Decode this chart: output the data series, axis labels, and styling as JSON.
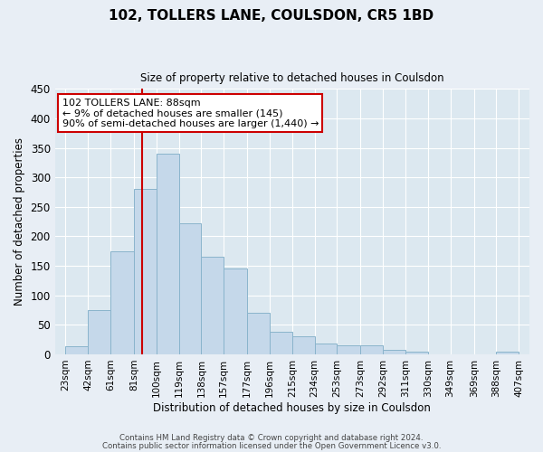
{
  "title": "102, TOLLERS LANE, COULSDON, CR5 1BD",
  "subtitle": "Size of property relative to detached houses in Coulsdon",
  "xlabel": "Distribution of detached houses by size in Coulsdon",
  "ylabel": "Number of detached properties",
  "bar_left_edges": [
    23,
    42,
    61,
    81,
    100,
    119,
    138,
    157,
    177,
    196,
    215,
    234,
    253,
    273,
    292,
    311,
    330,
    349,
    369,
    388
  ],
  "bar_heights": [
    13,
    75,
    175,
    280,
    340,
    222,
    165,
    145,
    70,
    38,
    30,
    18,
    15,
    15,
    7,
    5,
    0,
    0,
    0,
    5
  ],
  "bin_widths": [
    19,
    19,
    20,
    19,
    19,
    19,
    19,
    20,
    19,
    19,
    19,
    19,
    20,
    19,
    19,
    19,
    19,
    20,
    19,
    19
  ],
  "tick_labels": [
    "23sqm",
    "42sqm",
    "61sqm",
    "81sqm",
    "100sqm",
    "119sqm",
    "138sqm",
    "157sqm",
    "177sqm",
    "196sqm",
    "215sqm",
    "234sqm",
    "253sqm",
    "273sqm",
    "292sqm",
    "311sqm",
    "330sqm",
    "349sqm",
    "369sqm",
    "388sqm",
    "407sqm"
  ],
  "tick_positions": [
    23,
    42,
    61,
    81,
    100,
    119,
    138,
    157,
    177,
    196,
    215,
    234,
    253,
    273,
    292,
    311,
    330,
    349,
    369,
    388,
    407
  ],
  "bar_color": "#c5d8ea",
  "bar_edge_color": "#8ab4cc",
  "vline_x": 88,
  "vline_color": "#cc0000",
  "ylim": [
    0,
    450
  ],
  "yticks": [
    0,
    50,
    100,
    150,
    200,
    250,
    300,
    350,
    400,
    450
  ],
  "annotation_title": "102 TOLLERS LANE: 88sqm",
  "annotation_line1": "← 9% of detached houses are smaller (145)",
  "annotation_line2": "90% of semi-detached houses are larger (1,440) →",
  "annotation_box_facecolor": "#ffffff",
  "annotation_box_edgecolor": "#cc0000",
  "footer1": "Contains HM Land Registry data © Crown copyright and database right 2024.",
  "footer2": "Contains public sector information licensed under the Open Government Licence v3.0.",
  "fig_facecolor": "#e8eef5",
  "ax_facecolor": "#dce8f0",
  "grid_color": "#ffffff",
  "xlim_min": 14,
  "xlim_max": 416
}
